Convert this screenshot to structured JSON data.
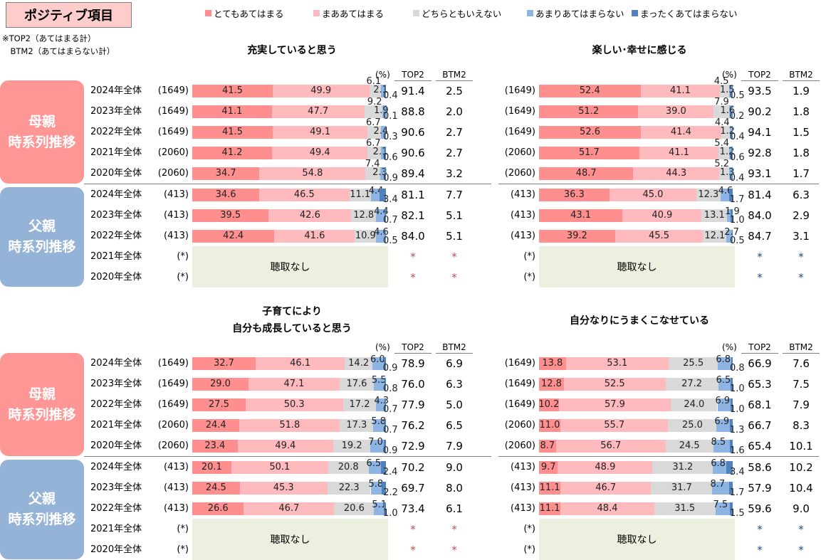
{
  "page_title": "ポジティブ項目",
  "note": [
    "※TOP2（あてはまる計）",
    "　BTM2（あてはまらない計）"
  ],
  "colors": [
    "#ff8f8f",
    "#ffbabd",
    "#d9d9d9",
    "#8db4e2",
    "#4f81bd"
  ],
  "side_labels": {
    "mother": "母親\n時系列推移",
    "father": "父親\n時系列推移",
    "mother_color": "#ff9696",
    "father_color": "#95b3d7"
  },
  "header": {
    "pct": "(%)",
    "top2": "TOP2",
    "btm2": "BTM2"
  },
  "no_data": "聴取なし",
  "chart_data": {
    "type": "stacked-bar",
    "legend": [
      "とてもあてはまる",
      "まああてはまる",
      "どちらともいえない",
      "あまりあてはまらない",
      "まったくあてはまらない"
    ],
    "legend_position": "top",
    "xlim": [
      0,
      100
    ],
    "panels": [
      {
        "title": [
          "充実していると思う"
        ],
        "rows": [
          {
            "group": "mother",
            "year": "2024年全体",
            "n": "(1649)",
            "values": [
              41.5,
              49.9,
              6.1,
              2.1,
              0.4
            ],
            "top2": "91.4",
            "btm2": "2.5"
          },
          {
            "group": "mother",
            "year": "2023年全体",
            "n": "(1649)",
            "values": [
              41.1,
              47.7,
              9.2,
              1.9,
              0.1
            ],
            "top2": "88.8",
            "btm2": "2.0"
          },
          {
            "group": "mother",
            "year": "2022年全体",
            "n": "(1649)",
            "values": [
              41.5,
              49.1,
              6.7,
              2.4,
              0.3
            ],
            "top2": "90.6",
            "btm2": "2.7"
          },
          {
            "group": "mother",
            "year": "2021年全体",
            "n": "(2060)",
            "values": [
              41.2,
              49.4,
              6.7,
              2.1,
              0.6
            ],
            "top2": "90.6",
            "btm2": "2.7"
          },
          {
            "group": "mother",
            "year": "2020年全体",
            "n": "(2060)",
            "values": [
              34.7,
              54.8,
              7.4,
              2.3,
              0.9
            ],
            "top2": "89.4",
            "btm2": "3.2"
          },
          {
            "group": "father",
            "year": "2024年全体",
            "n": "(413)",
            "values": [
              34.6,
              46.5,
              11.1,
              4.4,
              3.4
            ],
            "top2": "81.1",
            "btm2": "7.7"
          },
          {
            "group": "father",
            "year": "2023年全体",
            "n": "(413)",
            "values": [
              39.5,
              42.6,
              12.8,
              4.4,
              0.7
            ],
            "top2": "82.1",
            "btm2": "5.1"
          },
          {
            "group": "father",
            "year": "2022年全体",
            "n": "(413)",
            "values": [
              42.4,
              41.6,
              10.9,
              4.6,
              0.5
            ],
            "top2": "84.0",
            "btm2": "5.1"
          },
          {
            "group": "father",
            "year": "2021年全体",
            "n": "(*)",
            "values": null,
            "top2": "*",
            "btm2": "*"
          },
          {
            "group": "father",
            "year": "2020年全体",
            "n": "(*)",
            "values": null,
            "top2": "*",
            "btm2": "*"
          }
        ]
      },
      {
        "title": [
          "楽しい･幸せに感じる"
        ],
        "rows": [
          {
            "group": "mother",
            "year": "2024年全体",
            "n": "(1649)",
            "values": [
              52.4,
              41.1,
              4.5,
              1.5,
              0.5
            ],
            "top2": "93.5",
            "btm2": "1.9"
          },
          {
            "group": "mother",
            "year": "2023年全体",
            "n": "(1649)",
            "values": [
              51.2,
              39.0,
              7.9,
              1.6,
              0.2
            ],
            "top2": "90.2",
            "btm2": "1.8"
          },
          {
            "group": "mother",
            "year": "2022年全体",
            "n": "(1649)",
            "values": [
              52.6,
              41.4,
              4.4,
              1.2,
              0.4
            ],
            "top2": "94.1",
            "btm2": "1.5"
          },
          {
            "group": "mother",
            "year": "2021年全体",
            "n": "(2060)",
            "values": [
              51.7,
              41.1,
              5.4,
              1.2,
              0.6
            ],
            "top2": "92.8",
            "btm2": "1.8"
          },
          {
            "group": "mother",
            "year": "2020年全体",
            "n": "(2060)",
            "values": [
              48.7,
              44.3,
              5.2,
              1.3,
              0.4
            ],
            "top2": "93.1",
            "btm2": "1.7"
          },
          {
            "group": "father",
            "year": "2024年全体",
            "n": "(413)",
            "values": [
              36.3,
              45.0,
              12.3,
              4.6,
              1.7
            ],
            "top2": "81.4",
            "btm2": "6.3"
          },
          {
            "group": "father",
            "year": "2023年全体",
            "n": "(413)",
            "values": [
              43.1,
              40.9,
              13.1,
              1.9,
              1.0
            ],
            "top2": "84.0",
            "btm2": "2.9"
          },
          {
            "group": "father",
            "year": "2022年全体",
            "n": "(413)",
            "values": [
              39.2,
              45.5,
              12.1,
              2.7,
              0.5
            ],
            "top2": "84.7",
            "btm2": "3.1"
          },
          {
            "group": "father",
            "year": "2021年全体",
            "n": "(*)",
            "values": null,
            "top2": "*",
            "btm2": "*"
          },
          {
            "group": "father",
            "year": "2020年全体",
            "n": "(*)",
            "values": null,
            "top2": "*",
            "btm2": "*"
          }
        ]
      },
      {
        "title": [
          "子育てにより",
          "自分も成長していると思う"
        ],
        "rows": [
          {
            "group": "mother",
            "year": "2024年全体",
            "n": "(1649)",
            "values": [
              32.7,
              46.1,
              14.2,
              6.0,
              0.9
            ],
            "top2": "78.9",
            "btm2": "6.9"
          },
          {
            "group": "mother",
            "year": "2023年全体",
            "n": "(1649)",
            "values": [
              29.0,
              47.1,
              17.6,
              5.5,
              0.8
            ],
            "top2": "76.0",
            "btm2": "6.3"
          },
          {
            "group": "mother",
            "year": "2022年全体",
            "n": "(1649)",
            "values": [
              27.5,
              50.3,
              17.2,
              4.3,
              0.7
            ],
            "top2": "77.9",
            "btm2": "5.0"
          },
          {
            "group": "mother",
            "year": "2021年全体",
            "n": "(2060)",
            "values": [
              24.4,
              51.8,
              17.3,
              5.8,
              0.7
            ],
            "top2": "76.2",
            "btm2": "6.5"
          },
          {
            "group": "mother",
            "year": "2020年全体",
            "n": "(2060)",
            "values": [
              23.4,
              49.4,
              19.2,
              7.0,
              0.9
            ],
            "top2": "72.9",
            "btm2": "7.9"
          },
          {
            "group": "father",
            "year": "2024年全体",
            "n": "(413)",
            "values": [
              20.1,
              50.1,
              20.8,
              6.5,
              2.4
            ],
            "top2": "70.2",
            "btm2": "9.0"
          },
          {
            "group": "father",
            "year": "2023年全体",
            "n": "(413)",
            "values": [
              24.5,
              45.3,
              22.3,
              5.8,
              2.2
            ],
            "top2": "69.7",
            "btm2": "8.0"
          },
          {
            "group": "father",
            "year": "2022年全体",
            "n": "(413)",
            "values": [
              26.6,
              46.7,
              20.6,
              5.1,
              1.0
            ],
            "top2": "73.4",
            "btm2": "6.1"
          },
          {
            "group": "father",
            "year": "2021年全体",
            "n": "(*)",
            "values": null,
            "top2": "*",
            "btm2": "*"
          },
          {
            "group": "father",
            "year": "2020年全体",
            "n": "(*)",
            "values": null,
            "top2": "*",
            "btm2": "*"
          }
        ]
      },
      {
        "title": [
          "自分なりにうまくこなせている"
        ],
        "rows": [
          {
            "group": "mother",
            "year": "2024年全体",
            "n": "(1649)",
            "values": [
              13.8,
              53.1,
              25.5,
              6.8,
              0.8
            ],
            "top2": "66.9",
            "btm2": "7.6"
          },
          {
            "group": "mother",
            "year": "2023年全体",
            "n": "(1649)",
            "values": [
              12.8,
              52.5,
              27.2,
              6.5,
              1.0
            ],
            "top2": "65.3",
            "btm2": "7.5"
          },
          {
            "group": "mother",
            "year": "2022年全体",
            "n": "(1649)",
            "values": [
              10.2,
              57.9,
              24.0,
              6.9,
              1.0
            ],
            "top2": "68.1",
            "btm2": "7.9"
          },
          {
            "group": "mother",
            "year": "2021年全体",
            "n": "(2060)",
            "values": [
              11.0,
              55.7,
              25.0,
              6.9,
              1.3
            ],
            "top2": "66.7",
            "btm2": "8.3"
          },
          {
            "group": "mother",
            "year": "2020年全体",
            "n": "(2060)",
            "values": [
              8.7,
              56.7,
              24.5,
              8.5,
              1.6
            ],
            "top2": "65.4",
            "btm2": "10.1"
          },
          {
            "group": "father",
            "year": "2024年全体",
            "n": "(413)",
            "values": [
              9.7,
              48.9,
              31.2,
              6.8,
              3.4
            ],
            "top2": "58.6",
            "btm2": "10.2"
          },
          {
            "group": "father",
            "year": "2023年全体",
            "n": "(413)",
            "values": [
              11.1,
              46.7,
              31.7,
              8.7,
              1.7
            ],
            "top2": "57.9",
            "btm2": "10.4"
          },
          {
            "group": "father",
            "year": "2022年全体",
            "n": "(413)",
            "values": [
              11.1,
              48.4,
              31.5,
              7.5,
              1.5
            ],
            "top2": "59.6",
            "btm2": "9.0"
          },
          {
            "group": "father",
            "year": "2021年全体",
            "n": "(*)",
            "values": null,
            "top2": "*",
            "btm2": "*"
          },
          {
            "group": "father",
            "year": "2020年全体",
            "n": "(*)",
            "values": null,
            "top2": "*",
            "btm2": "*"
          }
        ]
      }
    ]
  }
}
